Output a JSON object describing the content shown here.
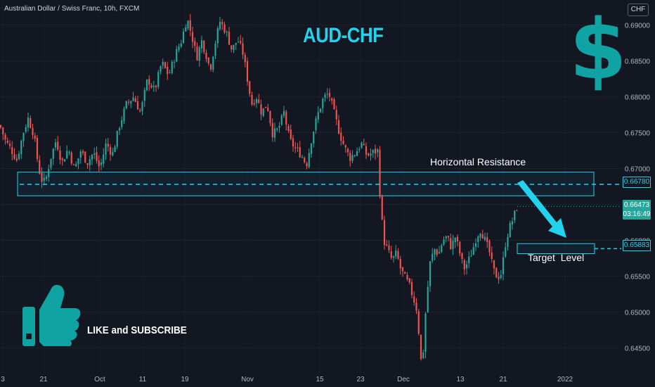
{
  "header": {
    "pair_title": "Australian Dollar / Swiss Franc, 10h, FXCM",
    "currency_button": "CHF"
  },
  "overlay": {
    "title": "AUD-CHF",
    "dollar_symbol": "$",
    "resistance_label": "Horizontal Resistance",
    "target_label": "Target  Level",
    "cta_text": "LIKE and SUBSCRIBE"
  },
  "price_tags": {
    "resistance": "0.66780",
    "last_price": "0.66473",
    "countdown": "03:16:49",
    "target": "0.65883"
  },
  "colors": {
    "background": "#131722",
    "up": "#26a69a",
    "down": "#ef5350",
    "cyan": "#22d3ee",
    "icon": "#0fa3a3"
  },
  "icons": [
    "thumbs-up-icon",
    "dollar-icon",
    "arrow-down-right-icon"
  ],
  "chart_data": {
    "type": "candlestick",
    "title": "Australian Dollar / Swiss Franc, 10h, FXCM",
    "ylim": [
      0.6415,
      0.6935
    ],
    "y_ticks": [
      0.69,
      0.685,
      0.68,
      0.675,
      0.67,
      0.665,
      0.66,
      0.655,
      0.65,
      0.645
    ],
    "y_tick_labels": [
      "0.69000",
      "0.68500",
      "0.68000",
      "0.67500",
      "0.67000",
      "0.66500",
      "0.66000",
      "0.65500",
      "0.65000",
      "0.64500"
    ],
    "x_tick_labels": [
      "3",
      "21",
      "Oct",
      "11",
      "19",
      "Nov",
      "15",
      "23",
      "Dec",
      "13",
      "21",
      "2022"
    ],
    "series_path": [
      [
        0,
        0.676
      ],
      [
        8,
        0.6738
      ],
      [
        15,
        0.6728
      ],
      [
        24,
        0.6712
      ],
      [
        33,
        0.675
      ],
      [
        40,
        0.677
      ],
      [
        48,
        0.6748
      ],
      [
        55,
        0.67
      ],
      [
        61,
        0.6679
      ],
      [
        66,
        0.6688
      ],
      [
        72,
        0.6715
      ],
      [
        80,
        0.674
      ],
      [
        88,
        0.6708
      ],
      [
        97,
        0.6728
      ],
      [
        106,
        0.6698
      ],
      [
        115,
        0.6725
      ],
      [
        124,
        0.6708
      ],
      [
        133,
        0.6722
      ],
      [
        142,
        0.67
      ],
      [
        151,
        0.6735
      ],
      [
        160,
        0.672
      ],
      [
        170,
        0.676
      ],
      [
        180,
        0.679
      ],
      [
        190,
        0.68
      ],
      [
        200,
        0.6778
      ],
      [
        210,
        0.6825
      ],
      [
        220,
        0.6808
      ],
      [
        230,
        0.6848
      ],
      [
        240,
        0.683
      ],
      [
        250,
        0.686
      ],
      [
        258,
        0.6878
      ],
      [
        266,
        0.691
      ],
      [
        273,
        0.6885
      ],
      [
        280,
        0.6855
      ],
      [
        287,
        0.6878
      ],
      [
        293,
        0.686
      ],
      [
        299,
        0.6838
      ],
      [
        305,
        0.687
      ],
      [
        313,
        0.6905
      ],
      [
        322,
        0.689
      ],
      [
        330,
        0.6865
      ],
      [
        338,
        0.688
      ],
      [
        346,
        0.686
      ],
      [
        352,
        0.6825
      ],
      [
        358,
        0.679
      ],
      [
        365,
        0.68
      ],
      [
        372,
        0.6778
      ],
      [
        380,
        0.679
      ],
      [
        388,
        0.6748
      ],
      [
        396,
        0.6755
      ],
      [
        404,
        0.6778
      ],
      [
        412,
        0.674
      ],
      [
        420,
        0.6728
      ],
      [
        428,
        0.672
      ],
      [
        436,
        0.6705
      ],
      [
        444,
        0.6745
      ],
      [
        452,
        0.6775
      ],
      [
        460,
        0.6798
      ],
      [
        468,
        0.6805
      ],
      [
        476,
        0.6775
      ],
      [
        483,
        0.675
      ],
      [
        490,
        0.673
      ],
      [
        498,
        0.6715
      ],
      [
        506,
        0.6722
      ],
      [
        514,
        0.6735
      ],
      [
        522,
        0.6718
      ],
      [
        530,
        0.6722
      ],
      [
        538,
        0.6725
      ],
      [
        541,
        0.6655
      ],
      [
        546,
        0.66
      ],
      [
        552,
        0.6585
      ],
      [
        558,
        0.6572
      ],
      [
        564,
        0.6582
      ],
      [
        570,
        0.656
      ],
      [
        576,
        0.6548
      ],
      [
        582,
        0.6538
      ],
      [
        588,
        0.652
      ],
      [
        594,
        0.65
      ],
      [
        598,
        0.6438
      ],
      [
        601,
        0.6422
      ],
      [
        604,
        0.648
      ],
      [
        608,
        0.6528
      ],
      [
        612,
        0.6568
      ],
      [
        618,
        0.6588
      ],
      [
        624,
        0.658
      ],
      [
        630,
        0.66
      ],
      [
        636,
        0.6605
      ],
      [
        642,
        0.659
      ],
      [
        648,
        0.6605
      ],
      [
        654,
        0.6583
      ],
      [
        660,
        0.656
      ],
      [
        666,
        0.657
      ],
      [
        672,
        0.6585
      ],
      [
        678,
        0.6605
      ],
      [
        684,
        0.6615
      ],
      [
        690,
        0.66
      ],
      [
        696,
        0.6585
      ],
      [
        702,
        0.6558
      ],
      [
        708,
        0.6548
      ],
      [
        714,
        0.6555
      ],
      [
        718,
        0.659
      ],
      [
        724,
        0.6615
      ],
      [
        730,
        0.663
      ],
      [
        736,
        0.6647
      ]
    ],
    "resistance_level": 0.6678,
    "resistance_zone": [
      0.6662,
      0.6695
    ],
    "target_level": 0.65883,
    "last_price": 0.66473,
    "up_color": "#26a69a",
    "down_color": "#ef5350"
  }
}
